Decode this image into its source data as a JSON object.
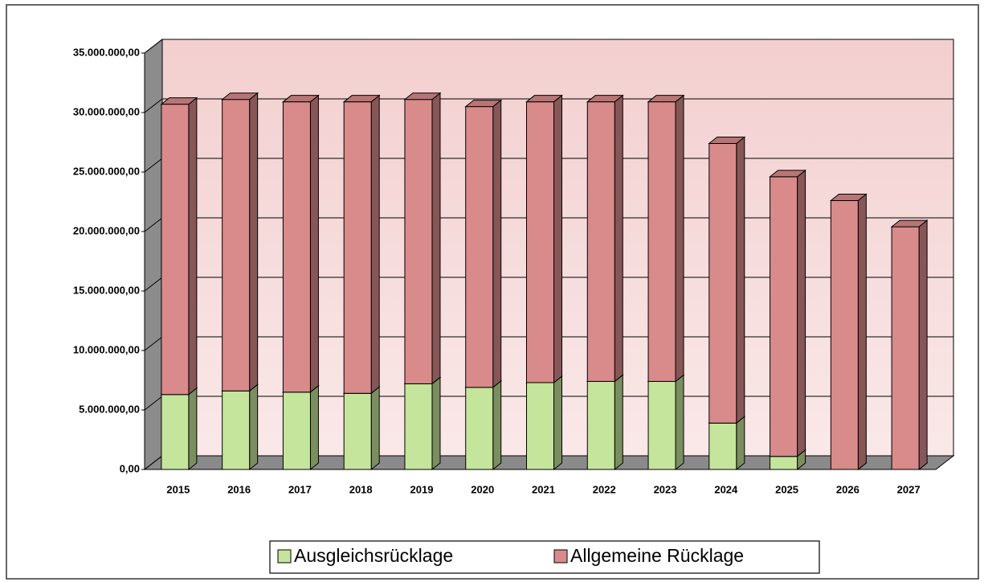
{
  "chart_data": {
    "type": "stacked-bar-3d",
    "categories": [
      "2015",
      "2016",
      "2017",
      "2018",
      "2019",
      "2020",
      "2021",
      "2022",
      "2023",
      "2024",
      "2025",
      "2026",
      "2027"
    ],
    "series": [
      {
        "name": "Ausgleichsrücklage",
        "color": "#c4e59b",
        "values": [
          6300000,
          6600000,
          6500000,
          6400000,
          7200000,
          6900000,
          7300000,
          7400000,
          7400000,
          3900000,
          1100000,
          0,
          0
        ]
      },
      {
        "name": "Allgemeine Rücklage",
        "color": "#d98a8a",
        "values": [
          24400000,
          24500000,
          24400000,
          24500000,
          23900000,
          23600000,
          23600000,
          23500000,
          23500000,
          23500000,
          23500000,
          22600000,
          20400000
        ]
      }
    ],
    "ylim": [
      0,
      35000000
    ],
    "yticks": [
      {
        "value": 0,
        "label": "0,00"
      },
      {
        "value": 5000000,
        "label": "5.000.000,00"
      },
      {
        "value": 10000000,
        "label": "10.000.000,00"
      },
      {
        "value": 15000000,
        "label": "15.000.000,00"
      },
      {
        "value": 20000000,
        "label": "20.000.000,00"
      },
      {
        "value": 25000000,
        "label": "25.000.000,00"
      },
      {
        "value": 30000000,
        "label": "30.000.000,00"
      },
      {
        "value": 35000000,
        "label": "35.000.000,00"
      }
    ],
    "grid": true,
    "legend": "bottom"
  }
}
